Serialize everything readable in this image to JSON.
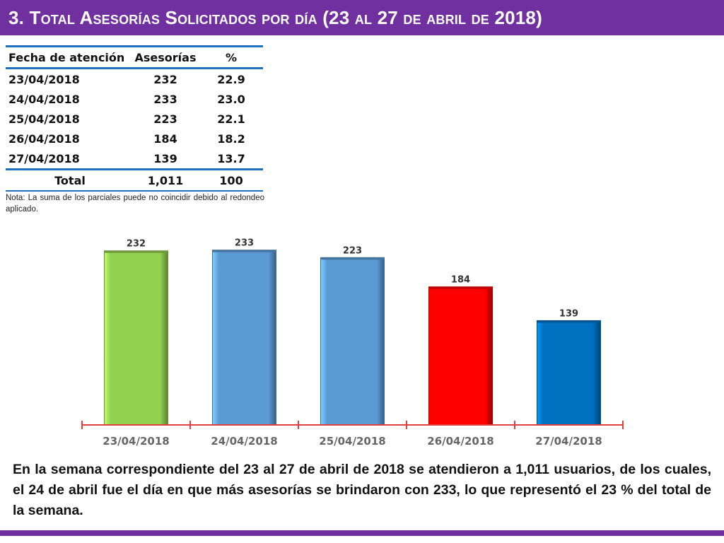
{
  "header": {
    "title": "3.  Total Asesorías Solicitados por día  (23 al 27 de abril de 2018)"
  },
  "table": {
    "headers": [
      "Fecha de atención",
      "Asesorías",
      "%"
    ],
    "rows": [
      [
        "23/04/2018",
        "232",
        "22.9"
      ],
      [
        "24/04/2018",
        "233",
        "23.0"
      ],
      [
        "25/04/2018",
        "223",
        "22.1"
      ],
      [
        "26/04/2018",
        "184",
        "18.2"
      ],
      [
        "27/04/2018",
        "139",
        "13.7"
      ]
    ],
    "total": [
      "Total",
      "1,011",
      "100"
    ]
  },
  "note": "Nota: La suma de los parciales puede no coincidir debido al redondeo aplicado.",
  "chart_data": {
    "type": "bar",
    "categories": [
      "23/04/2018",
      "24/04/2018",
      "25/04/2018",
      "26/04/2018",
      "27/04/2018"
    ],
    "values": [
      232,
      233,
      223,
      184,
      139
    ],
    "colors": [
      "#92d050",
      "#5b9bd5",
      "#5b9bd5",
      "#ff0000",
      "#0070c0"
    ],
    "axis_color": "#e04040",
    "ylim": [
      0,
      260
    ],
    "grid": false
  },
  "paragraph": "En la semana correspondiente del 23 al 27 de abril de 2018 se atendieron a 1,011 usuarios, de los cuales, el 24 de abril fue el día en que más asesorías se brindaron con 233, lo que representó el 23 % del total de la semana."
}
